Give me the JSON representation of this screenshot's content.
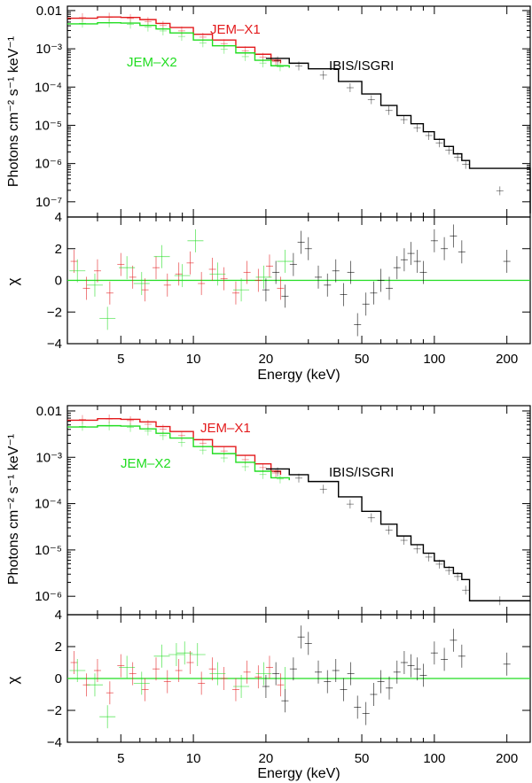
{
  "chart_data": [
    {
      "type": "line",
      "panel_label": "top",
      "xscale": "log",
      "xlim": [
        3,
        250
      ],
      "xlabel": "Energy (keV)",
      "xticks": [
        5,
        10,
        20,
        50,
        100,
        200
      ],
      "spectrum": {
        "ylabel": "Photons cm⁻² s⁻¹ keV⁻¹",
        "yscale": "log",
        "ylim": [
          4e-08,
          0.013
        ],
        "yticks": [
          {
            "value": 0.01,
            "label": "0.01"
          },
          {
            "value": 0.001,
            "label": "10⁻³"
          },
          {
            "value": 0.0001,
            "label": "10⁻⁴"
          },
          {
            "value": 1e-05,
            "label": "10⁻⁵"
          },
          {
            "value": 1e-06,
            "label": "10⁻⁶"
          },
          {
            "value": 1e-07,
            "label": "10⁻⁷"
          }
        ],
        "series": [
          {
            "name": "JEM–X1",
            "color": "#e31a1c",
            "x": [
              3,
              4,
              5,
              6,
              7,
              8,
              10,
              12,
              15,
              18,
              21,
              23
            ],
            "y": [
              0.0063,
              0.0068,
              0.0066,
              0.0058,
              0.0046,
              0.0036,
              0.0024,
              0.0017,
              0.0011,
              0.00072,
              0.0005,
              0.00042
            ]
          },
          {
            "name": "JEM–X2",
            "color": "#22dd22",
            "x": [
              3,
              4,
              5,
              6,
              7,
              8,
              10,
              12,
              15,
              18,
              21,
              25
            ],
            "y": [
              0.0045,
              0.0048,
              0.0047,
              0.0041,
              0.0033,
              0.0026,
              0.0017,
              0.0012,
              0.00078,
              0.0005,
              0.00036,
              0.00032
            ]
          },
          {
            "name": "IBIS/ISGRI",
            "color": "#000000",
            "x": [
              20,
              25,
              30,
              40,
              50,
              60,
              70,
              80,
              90,
              100,
              110,
              120,
              130,
              140,
              250
            ],
            "y": [
              0.00056,
              0.00042,
              0.0003,
              0.00014,
              6.6e-05,
              3.3e-05,
              1.8e-05,
              1.1e-05,
              6.8e-06,
              4.3e-06,
              2.8e-06,
              1.8e-06,
              1.2e-06,
              7.5e-07,
              5e-08
            ]
          }
        ],
        "annotations": [
          {
            "text": "JEM–X1",
            "color": "#e31a1c"
          },
          {
            "text": "JEM–X2",
            "color": "#22dd22"
          },
          {
            "text": "IBIS/ISGRI",
            "color": "#000000"
          }
        ]
      },
      "residuals": {
        "ylabel": "χ",
        "ylim": [
          -4,
          4
        ],
        "yticks": [
          {
            "value": 4,
            "label": "4"
          },
          {
            "value": 2,
            "label": "2"
          },
          {
            "value": 0,
            "label": "0"
          },
          {
            "value": -2,
            "label": "−2"
          },
          {
            "value": -4,
            "label": "−4"
          }
        ],
        "zero_line_color": "#22dd22",
        "points": [
          {
            "inst": "X1",
            "x": [
              3.2,
              3.6,
              4.0,
              4.5,
              5.0,
              5.6,
              6.3,
              7.0,
              7.8,
              8.7,
              9.7,
              10.8,
              12.0,
              13.4,
              15.0,
              16.7,
              18.6,
              20.7,
              23.0
            ],
            "y": [
              1.2,
              -0.5,
              0.6,
              -0.8,
              1.0,
              0.2,
              -0.6,
              0.8,
              -0.3,
              0.4,
              1.1,
              -0.2,
              0.7,
              0.1,
              -0.8,
              0.5,
              0.0,
              0.9,
              -0.5
            ]
          },
          {
            "inst": "X2",
            "x": [
              3.3,
              3.9,
              4.4,
              5.3,
              6.1,
              7.4,
              9.0,
              10.2,
              12.6,
              15.8,
              19.6,
              24.0
            ],
            "y": [
              0.6,
              -0.3,
              -2.4,
              0.8,
              -0.2,
              1.5,
              0.3,
              2.5,
              0.4,
              -0.6,
              0.2,
              1.2
            ]
          },
          {
            "inst": "ISGRI",
            "x": [
              20,
              22,
              24,
              26,
              28,
              30,
              33,
              36,
              39,
              42,
              45,
              48,
              52,
              56,
              60,
              65,
              70,
              75,
              80,
              85,
              90,
              100,
              110,
              120,
              130,
              200
            ],
            "y": [
              -0.6,
              0.5,
              -1.0,
              1.0,
              2.4,
              2.0,
              0.2,
              -0.3,
              0.6,
              -0.9,
              0.5,
              -2.8,
              -1.5,
              -0.8,
              0.0,
              -0.5,
              0.8,
              1.3,
              1.7,
              1.2,
              0.5,
              2.5,
              2.0,
              2.8,
              1.8,
              1.2
            ]
          }
        ]
      }
    },
    {
      "type": "line",
      "panel_label": "bottom",
      "xscale": "log",
      "xlim": [
        3,
        250
      ],
      "xlabel": "Energy (keV)",
      "xticks": [
        5,
        10,
        20,
        50,
        100,
        200
      ],
      "spectrum": {
        "ylabel": "Photons cm⁻² s⁻¹ keV⁻¹",
        "yscale": "log",
        "ylim": [
          4e-07,
          0.013
        ],
        "yticks": [
          {
            "value": 0.01,
            "label": "0.01"
          },
          {
            "value": 0.001,
            "label": "10⁻³"
          },
          {
            "value": 0.0001,
            "label": "10⁻⁴"
          },
          {
            "value": 1e-05,
            "label": "10⁻⁵"
          },
          {
            "value": 1e-06,
            "label": "10⁻⁶"
          }
        ],
        "series": [
          {
            "name": "JEM–X1",
            "color": "#e31a1c",
            "x": [
              3,
              4,
              5,
              6,
              7,
              8,
              10,
              12,
              15,
              18,
              21,
              23
            ],
            "y": [
              0.0063,
              0.0068,
              0.0066,
              0.0058,
              0.0046,
              0.0036,
              0.0024,
              0.0017,
              0.0011,
              0.00072,
              0.0005,
              0.00042
            ]
          },
          {
            "name": "JEM–X2",
            "color": "#22dd22",
            "x": [
              3,
              4,
              5,
              6,
              7,
              8,
              10,
              12,
              15,
              18,
              21,
              25
            ],
            "y": [
              0.0045,
              0.0048,
              0.0047,
              0.0041,
              0.0033,
              0.0026,
              0.0017,
              0.0012,
              0.00078,
              0.0005,
              0.00036,
              0.00032
            ]
          },
          {
            "name": "IBIS/ISGRI",
            "color": "#000000",
            "x": [
              20,
              25,
              30,
              40,
              50,
              60,
              70,
              80,
              90,
              100,
              110,
              120,
              130,
              140,
              250
            ],
            "y": [
              0.00056,
              0.00042,
              0.0003,
              0.00014,
              6.8e-05,
              3.6e-05,
              2e-05,
              1.3e-05,
              8.5e-06,
              5.8e-06,
              4.2e-06,
              3.1e-06,
              2.3e-06,
              8e-07,
              8e-07
            ]
          }
        ],
        "annotations": [
          {
            "text": "JEM–X1",
            "color": "#e31a1c"
          },
          {
            "text": "JEM–X2",
            "color": "#22dd22"
          },
          {
            "text": "IBIS/ISGRI",
            "color": "#000000"
          }
        ]
      },
      "residuals": {
        "ylabel": "χ",
        "ylim": [
          -4,
          4
        ],
        "yticks": [
          {
            "value": 4,
            "label": "4"
          },
          {
            "value": 2,
            "label": "2"
          },
          {
            "value": 0,
            "label": "0"
          },
          {
            "value": -2,
            "label": "−2"
          },
          {
            "value": -4,
            "label": "−4"
          }
        ],
        "zero_line_color": "#22dd22",
        "points": [
          {
            "inst": "X1",
            "x": [
              3.2,
              3.6,
              4.0,
              4.5,
              5.0,
              5.6,
              6.3,
              7.0,
              7.8,
              8.7,
              9.7,
              10.8,
              12.0,
              13.4,
              15.0,
              16.7,
              18.6,
              20.7,
              23.0
            ],
            "y": [
              1.0,
              -0.4,
              0.5,
              -0.9,
              0.8,
              0.3,
              -0.7,
              0.6,
              -0.2,
              0.5,
              1.0,
              -0.3,
              0.6,
              0.0,
              -0.7,
              0.4,
              0.1,
              0.7,
              -0.4
            ]
          },
          {
            "inst": "X2",
            "x": [
              3.3,
              3.9,
              4.4,
              5.3,
              6.1,
              7.4,
              8.5,
              9.2,
              10.4,
              12.6,
              15.8,
              19.6,
              24.0
            ],
            "y": [
              0.5,
              -0.4,
              -2.4,
              0.7,
              -0.3,
              1.4,
              1.5,
              1.6,
              1.5,
              0.3,
              -0.5,
              0.3,
              0.0
            ]
          },
          {
            "inst": "ISGRI",
            "x": [
              20,
              22,
              24,
              26,
              28,
              30,
              33,
              36,
              39,
              42,
              45,
              48,
              52,
              56,
              60,
              65,
              70,
              75,
              80,
              85,
              90,
              100,
              110,
              120,
              130,
              200
            ],
            "y": [
              -0.5,
              0.3,
              -1.4,
              0.6,
              2.6,
              2.2,
              0.4,
              -0.2,
              0.5,
              -0.7,
              0.3,
              -1.8,
              -2.2,
              -1.0,
              -0.2,
              -0.6,
              0.4,
              1.0,
              0.8,
              0.6,
              0.2,
              1.6,
              1.2,
              2.4,
              1.4,
              0.9
            ]
          }
        ]
      }
    }
  ]
}
